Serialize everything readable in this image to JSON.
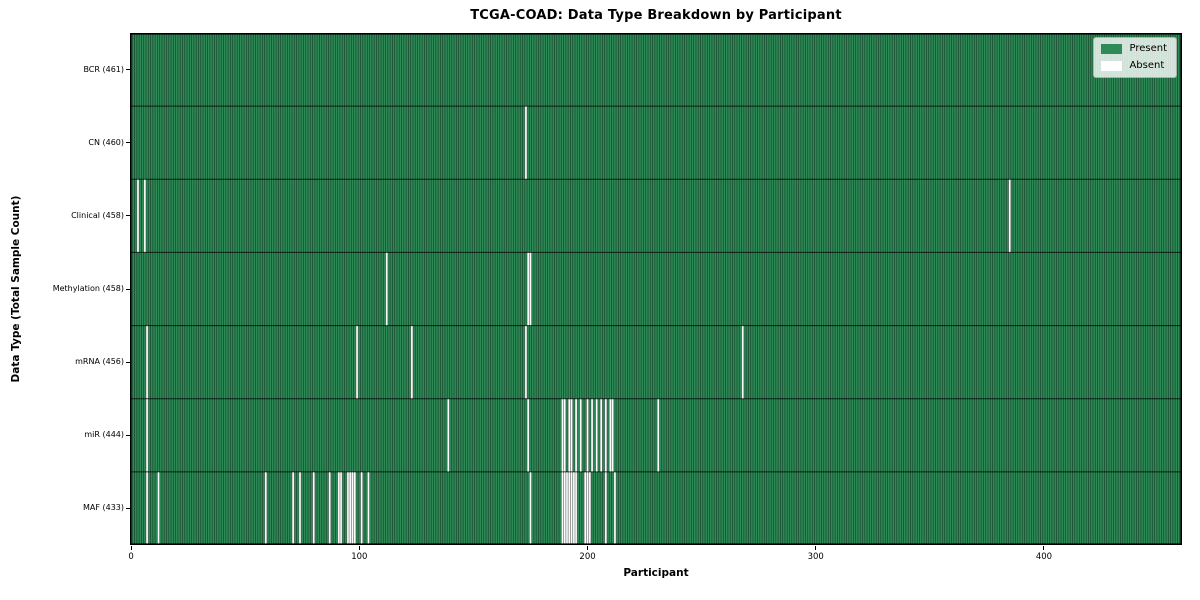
{
  "chart_data": {
    "type": "heatmap",
    "title": "TCGA-COAD: Data Type Breakdown by Participant",
    "xlabel": "Participant",
    "ylabel": "Data Type (Total Sample Count)",
    "x_ticks": [
      0,
      100,
      200,
      300,
      400
    ],
    "n_participants": 461,
    "grid": "column-and-row-edges",
    "legend_position": "upper-right-inside",
    "legend": [
      {
        "label": "Present",
        "color": "#2E8B57"
      },
      {
        "label": "Absent",
        "color": "#FFFFFF"
      }
    ],
    "colors": {
      "present": "#2E8B57",
      "absent": "#FFFFFF",
      "col_edge": "rgba(0,0,0,0.45)",
      "row_edge": "rgba(0,0,0,0.75)",
      "border": "#000000"
    },
    "rows": [
      {
        "label": "BCR (461)",
        "data_type": "BCR",
        "present_count": 461,
        "absent_indices": []
      },
      {
        "label": "CN (460)",
        "data_type": "CN",
        "present_count": 460,
        "absent_indices": [
          173
        ]
      },
      {
        "label": "Clinical (458)",
        "data_type": "Clinical",
        "present_count": 458,
        "absent_indices": [
          3,
          6,
          385
        ]
      },
      {
        "label": "Methylation (458)",
        "data_type": "Methylation",
        "present_count": 458,
        "absent_indices": [
          112,
          174,
          175
        ]
      },
      {
        "label": "mRNA (456)",
        "data_type": "mRNA",
        "present_count": 456,
        "absent_indices": [
          7,
          99,
          123,
          173,
          268
        ]
      },
      {
        "label": "miR (444)",
        "data_type": "miR",
        "present_count": 444,
        "absent_indices": [
          7,
          139,
          174,
          189,
          190,
          192,
          193,
          195,
          197,
          200,
          202,
          204,
          206,
          208,
          210,
          211,
          231
        ]
      },
      {
        "label": "MAF (433)",
        "data_type": "MAF",
        "present_count": 433,
        "absent_indices": [
          7,
          12,
          59,
          71,
          74,
          80,
          87,
          91,
          92,
          95,
          96,
          97,
          98,
          101,
          104,
          175,
          189,
          190,
          191,
          192,
          193,
          194,
          195,
          199,
          200,
          201,
          208,
          212
        ]
      }
    ]
  }
}
